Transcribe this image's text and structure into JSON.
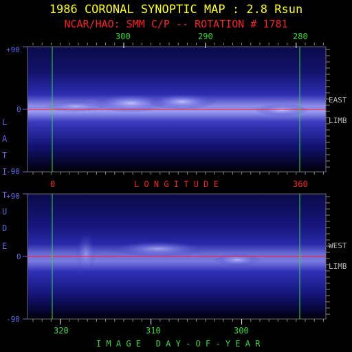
{
  "title": "1986 CORONAL SYNOPTIC MAP : 2.8 Rsun",
  "subtitle": "NCAR/HAO: SMM C/P -- ROTATION # 1781",
  "top_axis_ticks": [
    "300",
    "290",
    "280"
  ],
  "longitude_ticks": [
    "0",
    "360"
  ],
  "longitude_label": "L O N G I T U D E",
  "latitude_label": [
    "L",
    "A",
    "T",
    "I",
    "T",
    "U",
    "D",
    "E"
  ],
  "bottom_axis_ticks": [
    "320",
    "310",
    "300"
  ],
  "bottom_axis_label": "I M A G E   D A Y - O F - Y E A R",
  "colors": {
    "title": "#ffff00",
    "subtitle": "#ff2020",
    "grid_green": "#33dd33",
    "axis_blue": "#5b6cf0",
    "equator": "#ff2020",
    "limb": "#b8b8b8"
  },
  "chart_data": [
    {
      "type": "heatmap",
      "panel": "east",
      "limb_label": [
        "EAST",
        "LIMB"
      ],
      "y_tick_labels": [
        "+90",
        "0",
        "-90"
      ],
      "ylim": [
        -90,
        90
      ],
      "x_label": "LONGITUDE",
      "colormap": "black-blue-white",
      "bright_band_center_latitude": 0
    },
    {
      "type": "heatmap",
      "panel": "west",
      "limb_label": [
        "WEST",
        "LIMB"
      ],
      "y_tick_labels": [
        "+90",
        "0",
        "-90"
      ],
      "ylim": [
        -90,
        90
      ],
      "x_label": "IMAGE DAY-OF-YEAR",
      "colormap": "black-blue-white",
      "bright_band_center_latitude": 0
    }
  ]
}
